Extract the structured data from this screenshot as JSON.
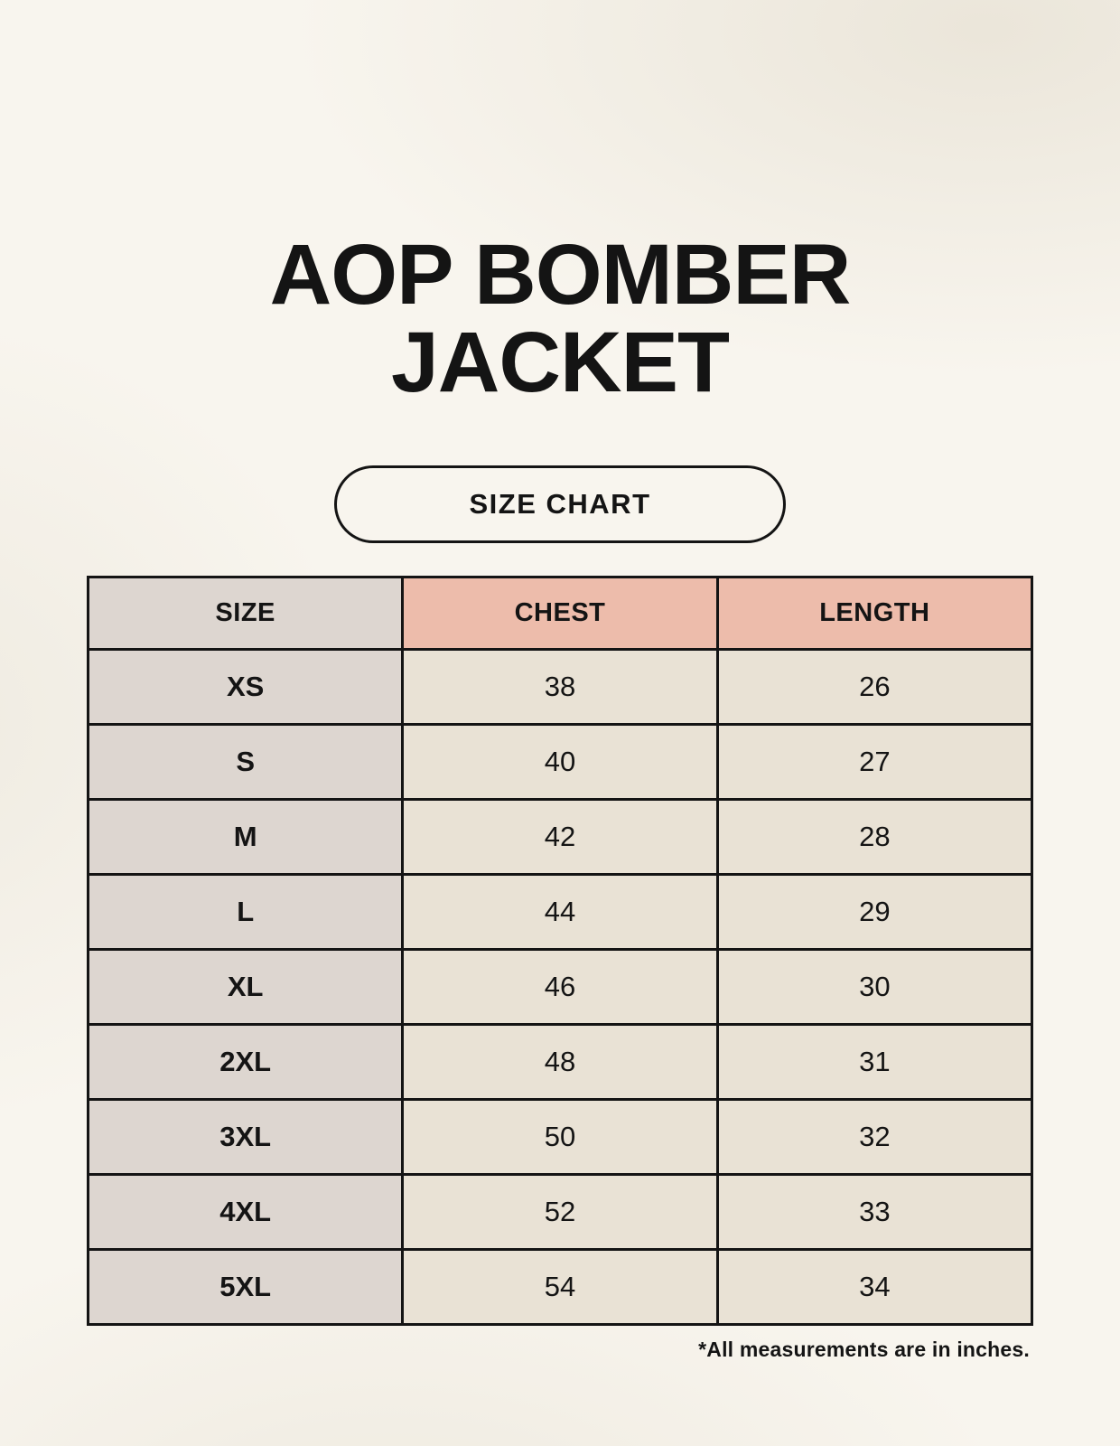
{
  "page": {
    "title_lines": [
      "AOP BOMBER",
      "JACKET"
    ],
    "badge_label": "SIZE CHART",
    "footnote": "*All measurements are in inches."
  },
  "colors": {
    "bg": "#f8f5ee",
    "ink": "#141414",
    "gray": "#ddd6d0",
    "pink": "#edbcab",
    "cream": "#e9e2d5"
  },
  "size_chart": {
    "columns": [
      "SIZE",
      "CHEST",
      "LENGTH"
    ],
    "rows": [
      {
        "size": "XS",
        "chest": "38",
        "length": "26"
      },
      {
        "size": "S",
        "chest": "40",
        "length": "27"
      },
      {
        "size": "M",
        "chest": "42",
        "length": "28"
      },
      {
        "size": "L",
        "chest": "44",
        "length": "29"
      },
      {
        "size": "XL",
        "chest": "46",
        "length": "30"
      },
      {
        "size": "2XL",
        "chest": "48",
        "length": "31"
      },
      {
        "size": "3XL",
        "chest": "50",
        "length": "32"
      },
      {
        "size": "4XL",
        "chest": "52",
        "length": "33"
      },
      {
        "size": "5XL",
        "chest": "54",
        "length": "34"
      }
    ],
    "units": "inches"
  },
  "chart_data": {
    "type": "table",
    "title": "AOP BOMBER JACKET — SIZE CHART",
    "columns": [
      "SIZE",
      "CHEST",
      "LENGTH"
    ],
    "rows": [
      [
        "XS",
        38,
        26
      ],
      [
        "S",
        40,
        27
      ],
      [
        "M",
        42,
        28
      ],
      [
        "L",
        44,
        29
      ],
      [
        "XL",
        46,
        30
      ],
      [
        "2XL",
        48,
        31
      ],
      [
        "3XL",
        50,
        32
      ],
      [
        "4XL",
        52,
        33
      ],
      [
        "5XL",
        54,
        34
      ]
    ],
    "note": "*All measurements are in inches."
  }
}
